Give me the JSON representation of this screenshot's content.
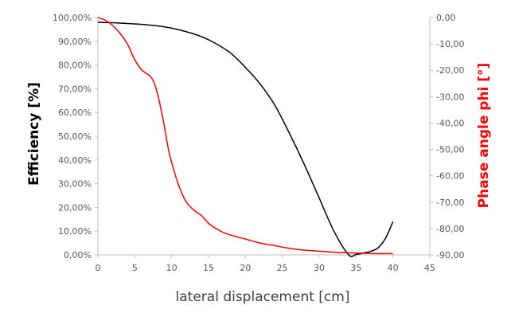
{
  "chart_data": {
    "type": "line",
    "title": "",
    "xlabel": "lateral displacement [cm]",
    "ylabel": "Efficiency [%]",
    "y2label": "Phase angle phi [°]",
    "xlim": [
      0,
      45
    ],
    "ylim": [
      0,
      1
    ],
    "y2lim": [
      -90,
      0
    ],
    "grid": false,
    "legend": "none",
    "x_ticks": [
      "0",
      "5",
      "10",
      "15",
      "20",
      "25",
      "30",
      "35",
      "40",
      "45"
    ],
    "y_ticks": [
      "0,00%",
      "10,00%",
      "20,00%",
      "30,00%",
      "40,00%",
      "50,00%",
      "60,00%",
      "70,00%",
      "80,00%",
      "90,00%",
      "100,00%"
    ],
    "y2_ticks": [
      "-90,00",
      "-80,00",
      "-70,00",
      "-60,00",
      "-50,00",
      "-40,00",
      "-30,00",
      "-20,00",
      "-10,00",
      "0,00"
    ],
    "series": [
      {
        "axis": "left",
        "color": "#000000",
        "x": [
          0,
          2,
          4,
          6,
          8,
          10,
          12,
          14,
          16,
          18,
          20,
          22,
          24,
          26,
          28,
          30,
          32,
          34,
          35,
          36,
          37,
          38,
          39,
          40
        ],
        "y": [
          0.98,
          0.978,
          0.975,
          0.971,
          0.965,
          0.955,
          0.94,
          0.92,
          0.89,
          0.85,
          0.79,
          0.72,
          0.63,
          0.51,
          0.38,
          0.24,
          0.1,
          0.0,
          0.002,
          0.008,
          0.015,
          0.03,
          0.07,
          0.14
        ]
      },
      {
        "axis": "right",
        "color": "#ff0000",
        "x": [
          0,
          1,
          2,
          3,
          4,
          5,
          6,
          7,
          7.5,
          8,
          8.5,
          9,
          9.5,
          10,
          11,
          12,
          13,
          14,
          15,
          16,
          17,
          18,
          20,
          22,
          24,
          26,
          28,
          30,
          32,
          34,
          35,
          36,
          38,
          40
        ],
        "y": [
          0,
          -1,
          -3,
          -6,
          -10,
          -16,
          -20,
          -22,
          -24,
          -28,
          -34,
          -41,
          -49,
          -55,
          -64,
          -70,
          -73,
          -75,
          -78,
          -80,
          -81.5,
          -82.5,
          -84,
          -85.5,
          -86.5,
          -87.5,
          -88.2,
          -88.6,
          -89,
          -89.2,
          -89.3,
          -89.4,
          -89.5,
          -89.5
        ]
      }
    ]
  }
}
